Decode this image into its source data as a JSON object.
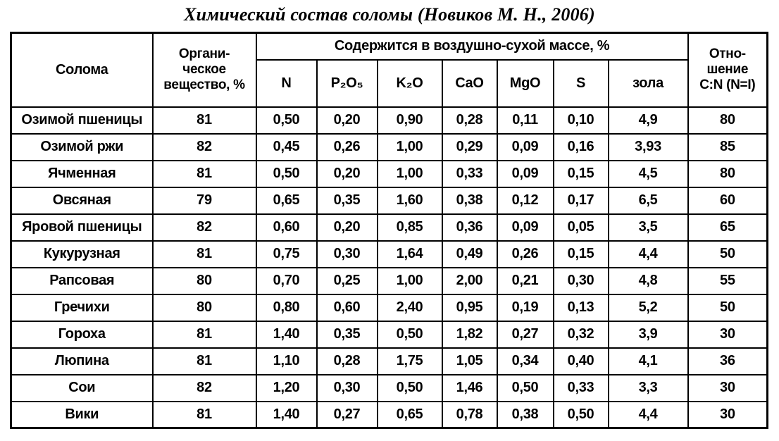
{
  "page": {
    "background_color": "#ffffff",
    "text_color": "#000000"
  },
  "title": "Химический состав соломы (Новиков М. Н., 2006)",
  "table": {
    "header": {
      "straw": "Солома",
      "organic": "Органи-\nческое\nвещество, %",
      "group": "Содержится в воздушно-сухой массе, %",
      "columns": [
        "N",
        "P₂O₅",
        "K₂O",
        "CaO",
        "MgO",
        "S",
        "зола"
      ],
      "ratio": "Отно-\nшение\nC:N (N=I)"
    },
    "rows": [
      {
        "name": "Озимой пшеницы",
        "values": [
          "81",
          "0,50",
          "0,20",
          "0,90",
          "0,28",
          "0,11",
          "0,10",
          "4,9",
          "80"
        ]
      },
      {
        "name": "Озимой ржи",
        "values": [
          "82",
          "0,45",
          "0,26",
          "1,00",
          "0,29",
          "0,09",
          "0,16",
          "3,93",
          "85"
        ]
      },
      {
        "name": "Ячменная",
        "values": [
          "81",
          "0,50",
          "0,20",
          "1,00",
          "0,33",
          "0,09",
          "0,15",
          "4,5",
          "80"
        ]
      },
      {
        "name": "Овсяная",
        "values": [
          "79",
          "0,65",
          "0,35",
          "1,60",
          "0,38",
          "0,12",
          "0,17",
          "6,5",
          "60"
        ]
      },
      {
        "name": "Яровой пшеницы",
        "values": [
          "82",
          "0,60",
          "0,20",
          "0,85",
          "0,36",
          "0,09",
          "0,05",
          "3,5",
          "65"
        ]
      },
      {
        "name": "Кукурузная",
        "values": [
          "81",
          "0,75",
          "0,30",
          "1,64",
          "0,49",
          "0,26",
          "0,15",
          "4,4",
          "50"
        ]
      },
      {
        "name": "Рапсовая",
        "values": [
          "80",
          "0,70",
          "0,25",
          "1,00",
          "2,00",
          "0,21",
          "0,30",
          "4,8",
          "55"
        ]
      },
      {
        "name": "Гречихи",
        "values": [
          "80",
          "0,80",
          "0,60",
          "2,40",
          "0,95",
          "0,19",
          "0,13",
          "5,2",
          "50"
        ]
      },
      {
        "name": "Гороха",
        "values": [
          "81",
          "1,40",
          "0,35",
          "0,50",
          "1,82",
          "0,27",
          "0,32",
          "3,9",
          "30"
        ]
      },
      {
        "name": "Люпина",
        "values": [
          "81",
          "1,10",
          "0,28",
          "1,75",
          "1,05",
          "0,34",
          "0,40",
          "4,1",
          "36"
        ]
      },
      {
        "name": "Сои",
        "values": [
          "82",
          "1,20",
          "0,30",
          "0,50",
          "1,46",
          "0,50",
          "0,33",
          "3,3",
          "30"
        ]
      },
      {
        "name": "Вики",
        "values": [
          "81",
          "1,40",
          "0,27",
          "0,65",
          "0,78",
          "0,38",
          "0,50",
          "4,4",
          "30"
        ]
      }
    ]
  }
}
